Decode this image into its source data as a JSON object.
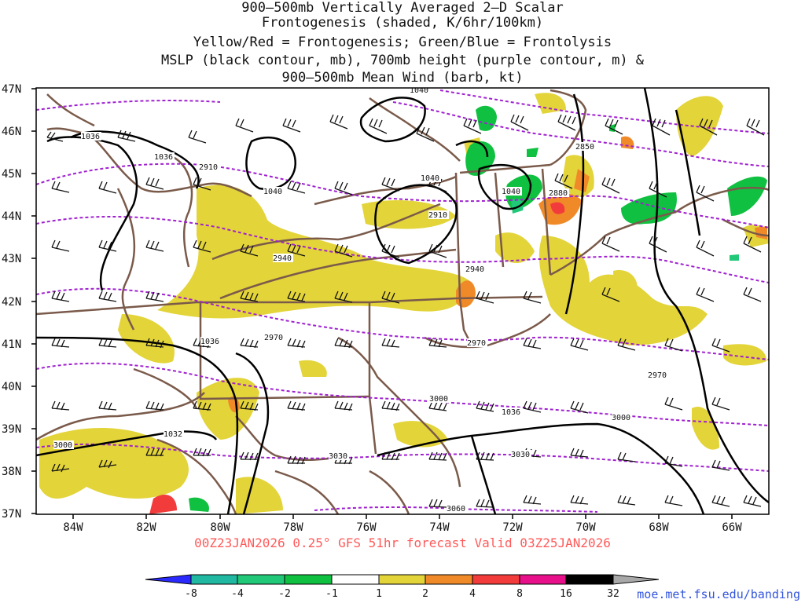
{
  "title_lines": [
    "900–500mb Vertically Averaged 2–D Scalar",
    "Frontogenesis (shaded, K/6hr/100km)",
    "Yellow/Red = Frontogenesis;  Green/Blue = Frontolysis",
    "MSLP (black contour, mb), 700mb height (purple contour, m) &",
    "900–500mb Mean Wind (barb, kt)"
  ],
  "lat_labels": [
    "47N",
    "46N",
    "45N",
    "44N",
    "43N",
    "42N",
    "41N",
    "40N",
    "39N",
    "38N",
    "37N"
  ],
  "lon_labels": [
    "84W",
    "82W",
    "80W",
    "78W",
    "76W",
    "74W",
    "72W",
    "70W",
    "68W",
    "66W"
  ],
  "footer": "00Z23JAN2026 0.25° GFS 51hr forecast Valid 03Z25JAN2026",
  "credit": "moe.met.fsu.edu/banding",
  "colorbar": {
    "labels": [
      "-8",
      "-4",
      "-2",
      "-1",
      "1",
      "2",
      "4",
      "8",
      "16",
      "32"
    ],
    "colors": [
      "#2a2aff",
      "#20b8a0",
      "#20c878",
      "#10c040",
      "#ffffff",
      "#e3d43a",
      "#f08a28",
      "#f23c3c",
      "#e8108a",
      "#000000",
      "#a8a8a8"
    ]
  },
  "height_labels": [
    "2850",
    "2880",
    "2910",
    "2940",
    "2970",
    "3000",
    "3030",
    "3060"
  ],
  "mslp_labels": [
    "1032",
    "1036",
    "1040"
  ],
  "colors": {
    "mslp": "#000000",
    "height": "#a020d0",
    "borders": "#7a5a4a",
    "title": "#111111",
    "footer": "#ff5a5a",
    "credit": "#3355dd"
  }
}
